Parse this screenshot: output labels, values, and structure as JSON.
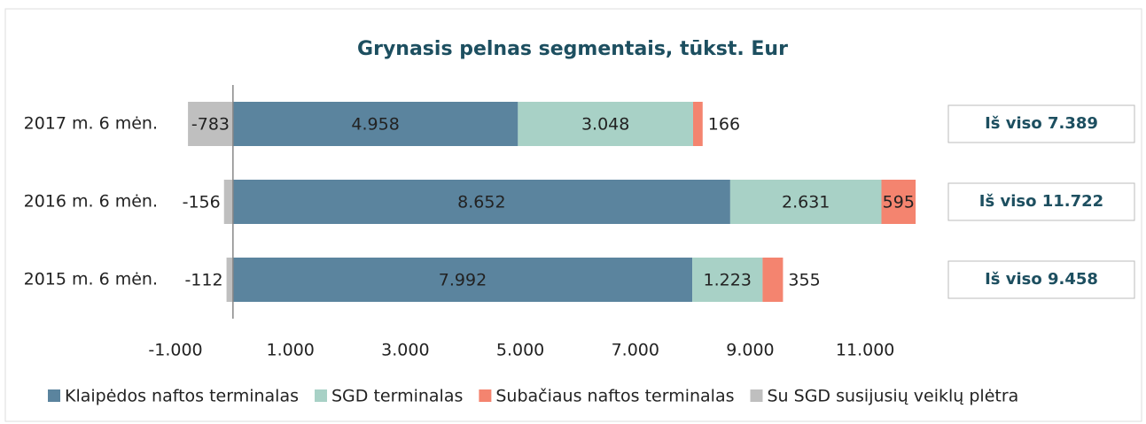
{
  "chart_data": {
    "type": "stacked-barh",
    "title": "Grynasis pelnas segmentais, tūkst. Eur",
    "categories": [
      "2017 m. 6 mėn.",
      "2016 m. 6 mėn.",
      "2015 m. 6 mėn."
    ],
    "series": [
      {
        "name": "Klaipėdos naftos terminalas",
        "color": "#5b849e",
        "values": [
          4958,
          8652,
          7992
        ],
        "value_labels": [
          "4.958",
          "8.652",
          "7.992"
        ]
      },
      {
        "name": "SGD terminalas",
        "color": "#a8d1c6",
        "values": [
          3048,
          2631,
          1223
        ],
        "value_labels": [
          "3.048",
          "2.631",
          "1.223"
        ]
      },
      {
        "name": "Subačiaus naftos terminalas",
        "color": "#f4846f",
        "values": [
          166,
          595,
          355
        ]
      },
      {
        "name": "Su SGD susijusių veiklų plėtra",
        "color": "#bfbfbf",
        "values": [
          -783,
          -156,
          -112
        ]
      }
    ],
    "totals": [
      "Iš viso 7.389",
      "Iš viso 11.722",
      "Iš viso 9.458"
    ],
    "xlim": [
      -1000,
      12000
    ],
    "xticks": [
      {
        "value": -1000,
        "label": "-1.000"
      },
      {
        "value": 1000,
        "label": "1.000"
      },
      {
        "value": 3000,
        "label": "3.000"
      },
      {
        "value": 5000,
        "label": "5.000"
      },
      {
        "value": 7000,
        "label": "7.000"
      },
      {
        "value": 9000,
        "label": "9.000"
      },
      {
        "value": 11000,
        "label": "11.000"
      }
    ],
    "legend": "bottom"
  }
}
